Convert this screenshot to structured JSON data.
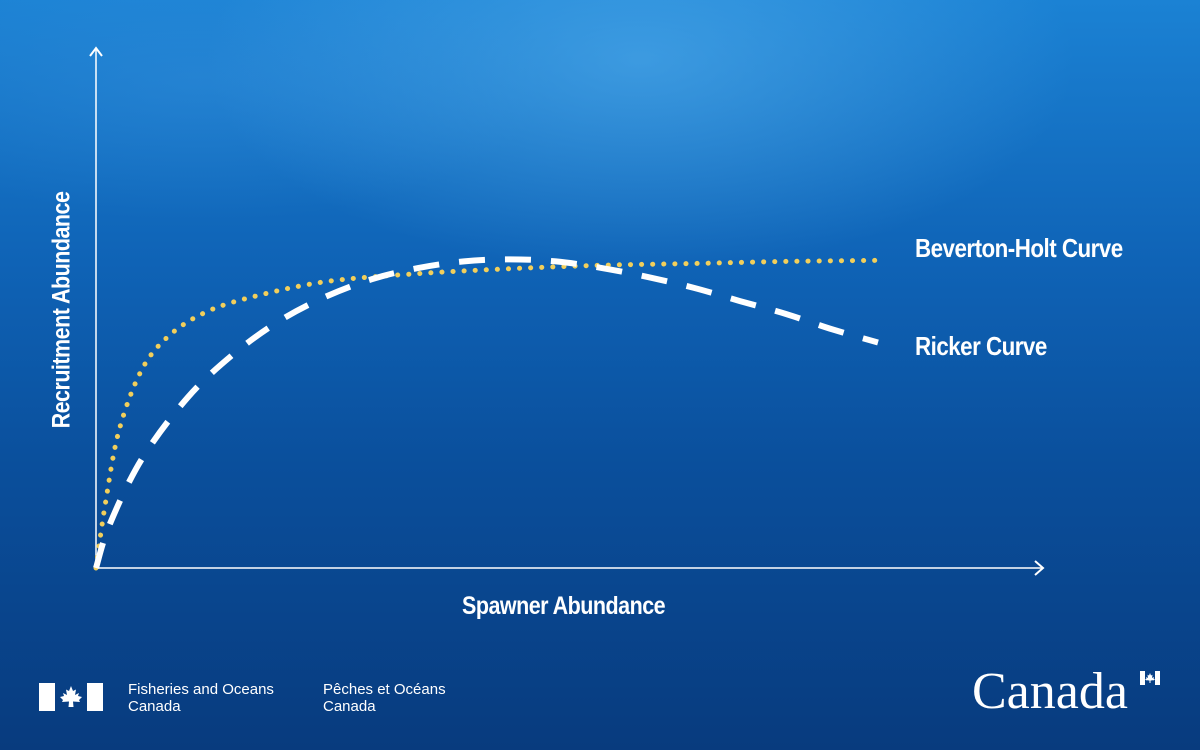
{
  "chart_data": {
    "type": "line",
    "title": "",
    "xlabel": "Spawner Abundance",
    "ylabel": "Recruitment Abundance",
    "xlim": [
      0,
      100
    ],
    "ylim": [
      0,
      100
    ],
    "grid": false,
    "axis_ticks": false,
    "series": [
      {
        "name": "Beverton-Holt Curve",
        "style": "dotted",
        "color": "#f2cf5b",
        "x": [
          0,
          1,
          2.5,
          5,
          8,
          12,
          17,
          25,
          35,
          45,
          55,
          65,
          75,
          85
        ],
        "y": [
          0,
          18.2,
          39.5,
          57.1,
          66.9,
          73.6,
          77.9,
          82.3,
          84.6,
          86.0,
          87.0,
          87.5,
          88.1,
          88.4
        ]
      },
      {
        "name": "Ricker Curve",
        "style": "dashed",
        "color": "#ffffff",
        "x": [
          0,
          1.5,
          5,
          10,
          15,
          20,
          25,
          30,
          35,
          40,
          45,
          50,
          55,
          60,
          65,
          70,
          75,
          80,
          85
        ],
        "y": [
          0,
          12.6,
          31.4,
          49.1,
          61.6,
          71.1,
          78.0,
          83.0,
          86.2,
          88.1,
          88.7,
          88.1,
          86.2,
          83.6,
          80.5,
          76.7,
          73.0,
          68.6,
          64.8
        ]
      }
    ]
  },
  "footer": {
    "dept_en_line1": "Fisheries and Oceans",
    "dept_en_line2": "Canada",
    "dept_fr_line1": "Pêches et Océans",
    "dept_fr_line2": "Canada",
    "wordmark": "Canada"
  }
}
